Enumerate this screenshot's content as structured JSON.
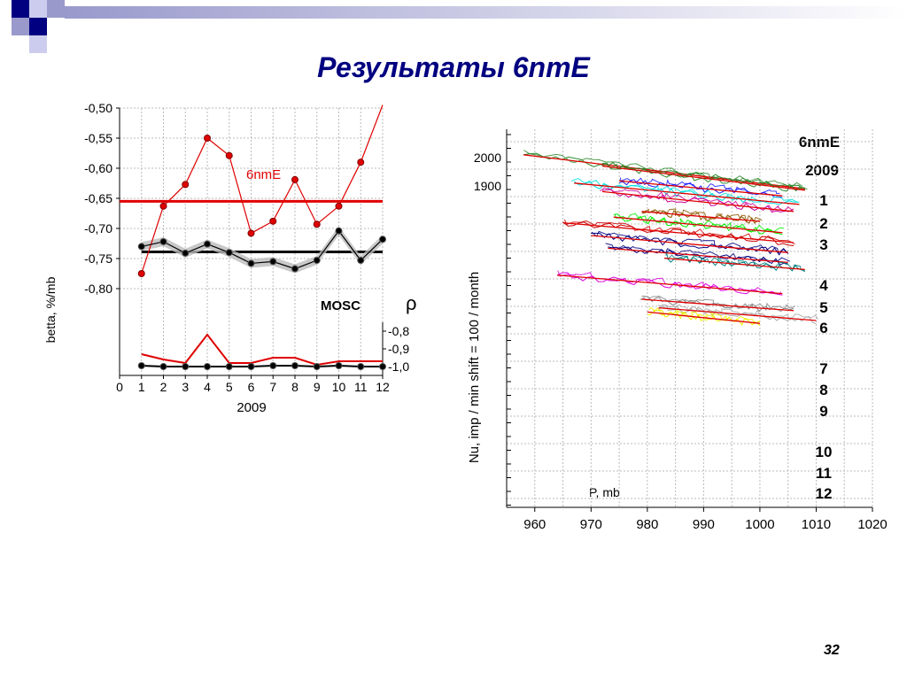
{
  "slide": {
    "title": "Результаты 6nmE",
    "page_number": "32",
    "accent_color": "#000080",
    "decoration_colors": [
      "#000080",
      "#9999cc",
      "#ccccee"
    ]
  },
  "chart_data": [
    {
      "type": "line",
      "title": "",
      "xlabel": "2009",
      "ylabel": "betta, %/mb",
      "y2label": "ρ",
      "xlim": [
        0,
        12
      ],
      "ylim": [
        -0.85,
        -0.5
      ],
      "y2lim": [
        -1.0,
        -0.8
      ],
      "grid": true,
      "x_ticks": [
        "0",
        "1",
        "2",
        "3",
        "4",
        "5",
        "6",
        "7",
        "8",
        "9",
        "10",
        "11",
        "12"
      ],
      "y_ticks": [
        "-0,50",
        "-0,55",
        "-0,60",
        "-0,65",
        "-0,70",
        "-0,75",
        "-0,80"
      ],
      "y_tick_values": [
        -0.5,
        -0.55,
        -0.6,
        -0.65,
        -0.7,
        -0.75,
        -0.8
      ],
      "y2_ticks": [
        "-0,8",
        "-0,9",
        "-1,0"
      ],
      "y2_tick_values": [
        -0.8,
        -0.9,
        -1.0
      ],
      "x": [
        1,
        2,
        3,
        4,
        5,
        6,
        7,
        8,
        9,
        10,
        11,
        12
      ],
      "series": [
        {
          "name": "6nmE",
          "axis": "betta",
          "color": "#e00000",
          "values": [
            -0.775,
            -0.663,
            -0.627,
            -0.55,
            -0.579,
            -0.708,
            -0.688,
            -0.619,
            -0.693,
            -0.663,
            -0.59,
            -0.495
          ],
          "mean": -0.655
        },
        {
          "name": "MOSC",
          "axis": "betta",
          "color": "#000000",
          "band_color": "#bbbbbb",
          "values": [
            -0.73,
            -0.722,
            -0.741,
            -0.726,
            -0.74,
            -0.758,
            -0.755,
            -0.767,
            -0.753,
            -0.704,
            -0.753,
            -0.718
          ],
          "mean": -0.739
        },
        {
          "name": "6nmE ρ",
          "axis": "rho",
          "color": "#e00000",
          "values": [
            -0.93,
            -0.96,
            -0.98,
            -0.82,
            -0.98,
            -0.98,
            -0.95,
            -0.95,
            -0.99,
            -0.97,
            -0.97,
            -0.97
          ]
        },
        {
          "name": "MOSC ρ",
          "axis": "rho",
          "color": "#000000",
          "values": [
            -0.995,
            -1.0,
            -1.0,
            -1.0,
            -1.0,
            -1.0,
            -0.995,
            -0.995,
            -1.0,
            -0.995,
            -1.0,
            -1.0
          ]
        }
      ]
    },
    {
      "type": "scatter",
      "title": "6nmE",
      "subtitle": "2009",
      "xlabel": "P, mb",
      "ylabel": "Nu,  imp / min     shift = 100 / month",
      "xlim": [
        955,
        1020
      ],
      "x_ticks": [
        "960",
        "970",
        "980",
        "990",
        "1000",
        "1010",
        "1020"
      ],
      "x_tick_values": [
        960,
        970,
        980,
        990,
        1000,
        1010,
        1020
      ],
      "y_ticks": [
        "2000",
        "1900"
      ],
      "grid": true,
      "regression_color": "#e00000",
      "month_labels": [
        "1",
        "2",
        "3",
        "4",
        "5",
        "6",
        "7",
        "8",
        "9",
        "10",
        "11",
        "12"
      ],
      "months": [
        {
          "month": "1",
          "color": "#2e8b2e",
          "p_range": [
            958,
            1008
          ],
          "count": [
            2010,
            1890
          ]
        },
        {
          "month": "1b",
          "color": "#2e8b2e",
          "p_range": [
            972,
            1008
          ],
          "count": [
            1970,
            1885
          ]
        },
        {
          "month": "2",
          "color": "#1a1aff",
          "p_range": [
            975,
            1004
          ],
          "count": [
            1918,
            1865
          ]
        },
        {
          "month": "2b",
          "color": "#00dddd",
          "p_range": [
            967,
            1007
          ],
          "count": [
            1910,
            1835
          ]
        },
        {
          "month": "3",
          "color": "#cc0099",
          "p_range": [
            972,
            1006
          ],
          "count": [
            1880,
            1810
          ]
        },
        {
          "month": "4",
          "color": "#8b5a00",
          "p_range": [
            979,
            1000
          ],
          "count": [
            1810,
            1775
          ]
        },
        {
          "month": "5",
          "color": "#00ee00",
          "p_range": [
            974,
            1004
          ],
          "count": [
            1790,
            1735
          ]
        },
        {
          "month": "6",
          "color": "#cc0000",
          "p_range": [
            965,
            1006
          ],
          "count": [
            1770,
            1700
          ]
        },
        {
          "month": "6b",
          "color": "#000080",
          "p_range": [
            970,
            1005
          ],
          "count": [
            1725,
            1665
          ]
        },
        {
          "month": "7",
          "color": "#000080",
          "p_range": [
            973,
            1005
          ],
          "count": [
            1680,
            1630
          ]
        },
        {
          "month": "8",
          "color": "#008080",
          "p_range": [
            983,
            1008
          ],
          "count": [
            1645,
            1605
          ]
        },
        {
          "month": "9",
          "color": "#dd00dd",
          "p_range": [
            964,
            1004
          ],
          "count": [
            1585,
            1520
          ]
        },
        {
          "month": "10",
          "color": "#888888",
          "p_range": [
            979,
            1006
          ],
          "count": [
            1500,
            1460
          ]
        },
        {
          "month": "11",
          "color": "#aaaaaa",
          "p_range": [
            982,
            1010
          ],
          "count": [
            1470,
            1425
          ]
        },
        {
          "month": "12",
          "color": "#eeee00",
          "p_range": [
            980,
            1000
          ],
          "count": [
            1455,
            1415
          ]
        }
      ]
    }
  ]
}
